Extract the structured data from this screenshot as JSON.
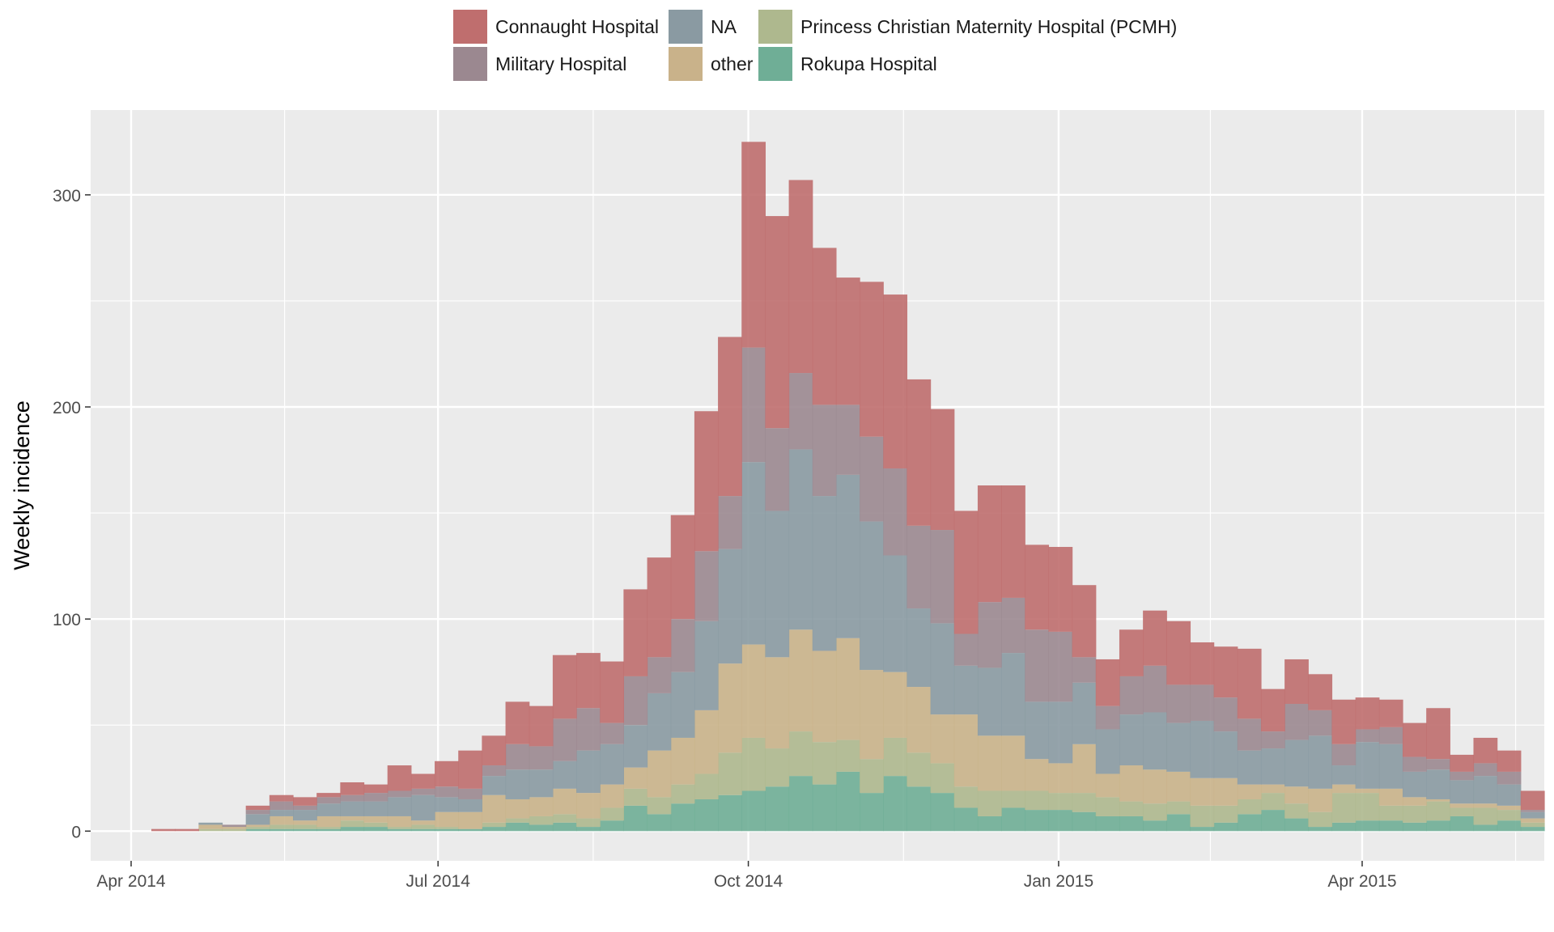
{
  "chart_data": {
    "type": "area",
    "stacked": true,
    "step": true,
    "title": "",
    "xlabel": "",
    "ylabel": "Weekly incidence",
    "x_start_date": "2014-04-07",
    "bin_days": 7,
    "x_ticks": [
      {
        "label": "Apr 2014",
        "date": "2014-04-01"
      },
      {
        "label": "Jul 2014",
        "date": "2014-07-01"
      },
      {
        "label": "Oct 2014",
        "date": "2014-10-01"
      },
      {
        "label": "Jan 2015",
        "date": "2015-01-01"
      },
      {
        "label": "Apr 2015",
        "date": "2015-04-01"
      }
    ],
    "x_range": [
      "2014-03-20",
      "2015-05-25"
    ],
    "y_ticks": [
      0,
      100,
      200,
      300
    ],
    "ylim": [
      -14,
      340
    ],
    "grid": true,
    "legend_position": "top",
    "series": [
      {
        "name": "Rokupa Hospital",
        "color": "#6fae96",
        "values": [
          0,
          0,
          0,
          0,
          1,
          1,
          1,
          1,
          2,
          2,
          1,
          1,
          1,
          1,
          2,
          4,
          3,
          4,
          2,
          5,
          12,
          8,
          13,
          15,
          17,
          19,
          21,
          26,
          22,
          28,
          18,
          26,
          21,
          18,
          11,
          7,
          11,
          10,
          10,
          9,
          7,
          7,
          5,
          8,
          2,
          4,
          8,
          10,
          6,
          2,
          4,
          5,
          5,
          4,
          5,
          7,
          3,
          5,
          2
        ]
      },
      {
        "name": "Princess Christian Maternity Hospital (PCMH)",
        "color": "#aeb88e",
        "values": [
          0,
          0,
          1,
          1,
          1,
          2,
          2,
          1,
          3,
          2,
          1,
          2,
          1,
          0,
          2,
          2,
          4,
          4,
          4,
          6,
          8,
          8,
          9,
          12,
          20,
          25,
          18,
          21,
          20,
          15,
          16,
          18,
          16,
          14,
          10,
          12,
          8,
          9,
          8,
          9,
          9,
          7,
          8,
          6,
          10,
          8,
          7,
          8,
          7,
          7,
          14,
          13,
          7,
          8,
          9,
          4,
          8,
          5,
          2
        ]
      },
      {
        "name": "other",
        "color": "#c9b28a",
        "values": [
          0,
          0,
          2,
          1,
          1,
          4,
          2,
          5,
          2,
          3,
          5,
          2,
          7,
          8,
          13,
          9,
          9,
          12,
          12,
          11,
          10,
          22,
          22,
          30,
          42,
          44,
          43,
          48,
          43,
          48,
          42,
          31,
          31,
          23,
          34,
          26,
          26,
          15,
          14,
          23,
          11,
          17,
          16,
          14,
          13,
          13,
          7,
          4,
          8,
          11,
          4,
          2,
          8,
          4,
          1,
          2,
          2,
          2,
          2
        ]
      },
      {
        "name": "NA",
        "color": "#8a9aa2",
        "values": [
          0,
          0,
          1,
          0,
          5,
          3,
          5,
          6,
          7,
          7,
          9,
          12,
          7,
          6,
          9,
          14,
          13,
          13,
          20,
          19,
          20,
          27,
          31,
          42,
          54,
          86,
          69,
          85,
          73,
          77,
          70,
          55,
          37,
          43,
          23,
          32,
          39,
          27,
          29,
          29,
          21,
          24,
          27,
          23,
          27,
          22,
          16,
          17,
          22,
          25,
          9,
          22,
          21,
          12,
          14,
          11,
          13,
          10,
          3
        ]
      },
      {
        "name": "Military Hospital",
        "color": "#9b8890",
        "values": [
          0,
          0,
          0,
          1,
          2,
          4,
          2,
          3,
          3,
          4,
          3,
          3,
          5,
          5,
          5,
          12,
          11,
          20,
          20,
          10,
          23,
          17,
          25,
          33,
          25,
          54,
          39,
          36,
          43,
          33,
          40,
          41,
          39,
          44,
          15,
          31,
          26,
          34,
          33,
          12,
          11,
          18,
          22,
          18,
          17,
          16,
          15,
          8,
          17,
          12,
          10,
          6,
          8,
          7,
          5,
          4,
          6,
          6,
          1
        ]
      },
      {
        "name": "Connaught Hospital",
        "color": "#bf6e6e",
        "values": [
          1,
          1,
          0,
          0,
          2,
          3,
          4,
          2,
          6,
          4,
          12,
          7,
          12,
          18,
          14,
          20,
          19,
          30,
          26,
          29,
          41,
          47,
          49,
          66,
          75,
          97,
          100,
          91,
          74,
          60,
          73,
          82,
          69,
          57,
          58,
          55,
          53,
          40,
          40,
          34,
          22,
          22,
          26,
          30,
          20,
          24,
          33,
          20,
          21,
          17,
          21,
          15,
          13,
          16,
          24,
          8,
          12,
          10,
          9
        ]
      }
    ]
  }
}
